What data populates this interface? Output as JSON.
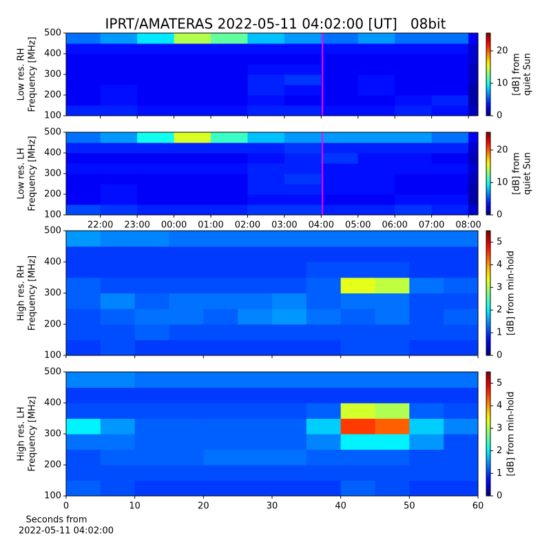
{
  "title": "IPRT/AMATERAS 2022-05-11 04:02:00 [UT]   08bit",
  "chart_data": [
    {
      "type": "heatmap",
      "ylabel": [
        "Low res. RH",
        "Frequency [MHz]"
      ],
      "xlim": [
        21.07,
        32.26
      ],
      "ylim": [
        100,
        500
      ],
      "xticks": [
        {
          "value": 22,
          "label": "22:00"
        },
        {
          "value": 23,
          "label": "23:00"
        },
        {
          "value": 24,
          "label": "00:00"
        },
        {
          "value": 25,
          "label": "01:00"
        },
        {
          "value": 26,
          "label": "02:00"
        },
        {
          "value": 27,
          "label": "03:00"
        },
        {
          "value": 28,
          "label": "04:00"
        },
        {
          "value": 29,
          "label": "05:00"
        },
        {
          "value": 30,
          "label": "06:00"
        },
        {
          "value": 31,
          "label": "07:00"
        },
        {
          "value": 32,
          "label": "08:00"
        }
      ],
      "show_xtick_labels": false,
      "yticks": [
        100,
        200,
        300,
        400,
        500
      ],
      "x_edges": [
        21.07,
        22,
        23,
        24,
        25,
        26,
        27,
        28,
        29,
        30,
        31,
        32,
        32.26
      ],
      "y_edges": [
        100,
        150,
        200,
        250,
        300,
        350,
        400,
        450,
        500
      ],
      "z": [
        [
          4,
          4,
          3.5,
          3.5,
          3.5,
          4,
          4,
          3.5,
          3.5,
          4,
          3.5,
          1.5
        ],
        [
          3,
          3.5,
          3,
          3,
          3,
          3.5,
          3,
          3,
          3,
          3.5,
          4,
          1
        ],
        [
          3,
          3.5,
          3,
          3,
          3,
          4,
          3.5,
          3,
          3.5,
          3,
          3,
          1
        ],
        [
          3,
          3,
          3,
          3,
          3,
          4,
          4.5,
          3,
          3.5,
          3,
          3,
          1.5
        ],
        [
          3,
          3,
          3,
          3,
          3,
          3.5,
          3.5,
          3,
          3,
          3,
          3,
          1.5
        ],
        [
          3,
          3,
          3,
          3,
          3,
          3,
          3,
          3,
          3,
          3,
          3,
          2
        ],
        [
          3.5,
          3.5,
          3.5,
          3.5,
          3.5,
          3.5,
          3.5,
          3.5,
          3.5,
          3.5,
          3.5,
          2
        ],
        [
          6,
          7,
          9,
          14,
          12,
          8,
          7,
          6,
          7,
          6,
          6,
          3
        ]
      ],
      "colormap": "jet",
      "vline": {
        "x": 28.033,
        "color": "#ff00ff"
      },
      "colorbar": {
        "lim": [
          0,
          25.5
        ],
        "ticks": [
          0,
          10,
          20
        ],
        "label": [
          "[dB] from",
          "quiet Sun"
        ]
      }
    },
    {
      "type": "heatmap",
      "ylabel": [
        "Low res. LH",
        "Frequency [MHz]"
      ],
      "xlim": [
        21.07,
        32.26
      ],
      "ylim": [
        100,
        500
      ],
      "xticks": [
        {
          "value": 22,
          "label": "22:00"
        },
        {
          "value": 23,
          "label": "23:00"
        },
        {
          "value": 24,
          "label": "00:00"
        },
        {
          "value": 25,
          "label": "01:00"
        },
        {
          "value": 26,
          "label": "02:00"
        },
        {
          "value": 27,
          "label": "03:00"
        },
        {
          "value": 28,
          "label": "04:00"
        },
        {
          "value": 29,
          "label": "05:00"
        },
        {
          "value": 30,
          "label": "06:00"
        },
        {
          "value": 31,
          "label": "07:00"
        },
        {
          "value": 32,
          "label": "08:00"
        }
      ],
      "show_xtick_labels": true,
      "yticks": [
        100,
        200,
        300,
        400,
        500
      ],
      "x_edges": [
        21.07,
        22,
        23,
        24,
        25,
        26,
        27,
        28,
        29,
        30,
        31,
        32,
        32.26
      ],
      "y_edges": [
        100,
        150,
        200,
        250,
        300,
        350,
        400,
        450,
        500
      ],
      "z": [
        [
          5,
          4.5,
          4,
          4,
          4,
          4.5,
          4.5,
          4,
          4,
          4.5,
          4,
          2
        ],
        [
          3,
          3.5,
          3,
          3,
          3,
          3.5,
          3.5,
          3,
          3,
          3.5,
          3.5,
          1
        ],
        [
          3,
          3.5,
          3,
          3,
          3,
          4,
          4,
          3.5,
          3.5,
          3,
          3,
          1
        ],
        [
          3,
          3,
          3,
          3,
          3,
          4,
          4.5,
          3.5,
          3.5,
          3,
          3,
          1.5
        ],
        [
          3.5,
          3.5,
          3.5,
          3.5,
          3.5,
          4,
          4,
          3.5,
          3.5,
          3.5,
          3.5,
          2
        ],
        [
          3,
          3,
          3,
          3,
          3,
          3.5,
          4,
          4.5,
          3.5,
          3.5,
          3,
          1.5
        ],
        [
          4,
          4,
          4,
          4,
          4,
          4,
          4.5,
          4,
          4,
          4,
          4,
          2
        ],
        [
          6,
          7,
          10,
          15,
          11,
          8,
          7,
          7,
          7,
          7,
          6,
          3
        ]
      ],
      "colormap": "jet",
      "vline": {
        "x": 28.033,
        "color": "#ff00ff"
      },
      "colorbar": {
        "lim": [
          0,
          25.5
        ],
        "ticks": [
          0,
          10,
          20
        ],
        "label": [
          "[dB] from",
          "quiet Sun"
        ]
      }
    },
    {
      "type": "heatmap",
      "ylabel": [
        "High res. RH",
        "Frequency [MHz]"
      ],
      "xlim": [
        0,
        60
      ],
      "ylim": [
        100,
        500
      ],
      "xticks": [
        0,
        10,
        20,
        30,
        40,
        50,
        60
      ],
      "show_xtick_labels": false,
      "yticks": [
        100,
        200,
        300,
        400,
        500
      ],
      "x_edges": [
        0,
        5,
        10,
        15,
        20,
        25,
        30,
        35,
        40,
        45,
        50,
        55,
        60
      ],
      "y_edges": [
        100,
        150,
        200,
        250,
        300,
        350,
        400,
        450,
        500
      ],
      "z": [
        [
          1,
          1.1,
          1,
          1,
          1,
          1,
          1,
          1,
          1.1,
          1.1,
          1,
          1
        ],
        [
          1.1,
          1.1,
          1.2,
          1.1,
          1.1,
          1.1,
          1.1,
          1.1,
          1.1,
          1.1,
          1.1,
          1.1
        ],
        [
          1.1,
          1.2,
          1.3,
          1.3,
          1.2,
          1.4,
          1.5,
          1.3,
          1.2,
          1.3,
          1.1,
          1.2
        ],
        [
          1.2,
          1.4,
          1.2,
          1.3,
          1.3,
          1.3,
          1.4,
          1.2,
          1.3,
          1.3,
          1.1,
          1.1
        ],
        [
          1.2,
          1.1,
          1.1,
          1.1,
          1.1,
          1.1,
          1.1,
          1.2,
          3.3,
          3.1,
          1.3,
          1.2
        ],
        [
          1,
          1,
          1,
          1,
          1,
          1,
          1,
          1.1,
          1.1,
          1.1,
          1,
          1
        ],
        [
          1,
          1,
          1,
          1,
          1,
          1,
          1,
          1,
          1,
          1,
          1,
          1
        ],
        [
          1.5,
          1.4,
          1.4,
          1.3,
          1.3,
          1.3,
          1.3,
          1.3,
          1.3,
          1.3,
          1.3,
          1.3
        ]
      ],
      "colormap": "jet",
      "colorbar": {
        "lim": [
          0,
          5.5
        ],
        "ticks": [
          0,
          1,
          2,
          3,
          4,
          5
        ],
        "label": [
          "[dB] from min-hold"
        ]
      }
    },
    {
      "type": "heatmap",
      "ylabel": [
        "High res. LH",
        "Frequency [MHz]"
      ],
      "xlim": [
        0,
        60
      ],
      "ylim": [
        100,
        500
      ],
      "xticks": [
        0,
        10,
        20,
        30,
        40,
        50,
        60
      ],
      "show_xtick_labels": true,
      "xlabel": [
        "Seconds from",
        "2022-05-11 04:02:00"
      ],
      "yticks": [
        100,
        200,
        300,
        400,
        500
      ],
      "x_edges": [
        0,
        5,
        10,
        15,
        20,
        25,
        30,
        35,
        40,
        45,
        50,
        55,
        60
      ],
      "y_edges": [
        100,
        150,
        200,
        250,
        300,
        350,
        400,
        450,
        500
      ],
      "z": [
        [
          1.2,
          1.1,
          1,
          1,
          1,
          1,
          1,
          1,
          1.2,
          1.1,
          1,
          1
        ],
        [
          1.1,
          1.1,
          1.1,
          1.1,
          1.1,
          1.1,
          1.1,
          1.1,
          1.1,
          1.1,
          1.1,
          1.1
        ],
        [
          1.1,
          1.2,
          1.2,
          1.2,
          1.3,
          1.3,
          1.3,
          1.2,
          1.2,
          1.2,
          1.1,
          1.1
        ],
        [
          1.3,
          1.3,
          1.2,
          1.2,
          1.2,
          1.2,
          1.2,
          1.4,
          2,
          2,
          1.5,
          1.1
        ],
        [
          2,
          1.5,
          1.2,
          1.2,
          1.2,
          1.2,
          1.2,
          1.8,
          4.5,
          4.3,
          1.8,
          1.4
        ],
        [
          1.1,
          1.1,
          1.1,
          1.1,
          1.1,
          1.1,
          1.1,
          1.2,
          3.2,
          3,
          1.2,
          1.1
        ],
        [
          1,
          1,
          1,
          1,
          1,
          1,
          1,
          1,
          1,
          1,
          1,
          1
        ],
        [
          1.4,
          1.4,
          1.3,
          1.3,
          1.3,
          1.3,
          1.3,
          1.3,
          1.3,
          1.3,
          1.3,
          1.3
        ]
      ],
      "colormap": "jet",
      "colorbar": {
        "lim": [
          0,
          5.5
        ],
        "ticks": [
          0,
          1,
          2,
          3,
          4,
          5
        ],
        "label": [
          "[dB] from min-hold"
        ]
      }
    }
  ]
}
